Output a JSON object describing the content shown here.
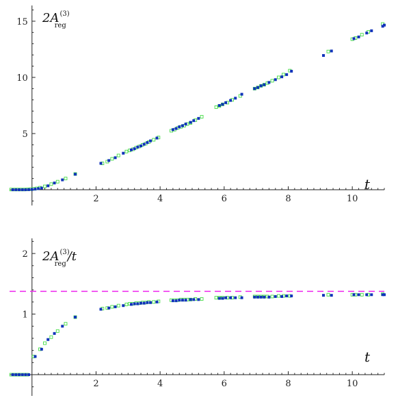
{
  "chart_data": [
    {
      "type": "scatter",
      "label": {
        "prefix": "2A",
        "superscript": "(3)",
        "subscript": "reg",
        "suffix": ""
      },
      "x_axis_label": "t",
      "xlim": [
        -0.7,
        11
      ],
      "ylim": [
        -1.4,
        16.4
      ],
      "x_ticks": [
        2,
        4,
        6,
        8,
        10
      ],
      "y_ticks": [
        5,
        10,
        15
      ],
      "series": [
        {
          "marker": "open-square",
          "color": "#44dd44",
          "x": [
            -0.65,
            -0.55,
            -0.45,
            -0.35,
            -0.25,
            -0.15,
            -0.05,
            0.05,
            0.15,
            0.25,
            0.4,
            0.6,
            0.8,
            1.05,
            1.35,
            2.2,
            2.35,
            2.5,
            2.7,
            2.95,
            3.05,
            3.15,
            3.25,
            3.35,
            3.45,
            3.55,
            3.65,
            3.8,
            3.95,
            4.35,
            4.45,
            4.55,
            4.65,
            4.75,
            4.85,
            4.95,
            5.1,
            5.3,
            5.75,
            5.85,
            5.95,
            6.1,
            6.25,
            6.5,
            6.95,
            7.05,
            7.15,
            7.25,
            7.35,
            7.5,
            7.7,
            7.85,
            8.05,
            9.25,
            10.0,
            10.1,
            10.3,
            10.5,
            10.95
          ],
          "y": [
            0.02,
            0.02,
            0.02,
            0.02,
            0.02,
            0.03,
            0.05,
            0.08,
            0.12,
            0.18,
            0.3,
            0.5,
            0.72,
            1.0,
            1.4,
            2.35,
            2.5,
            2.75,
            3.05,
            3.4,
            3.5,
            3.6,
            3.75,
            3.85,
            4.0,
            4.1,
            4.25,
            4.45,
            4.65,
            5.25,
            5.35,
            5.5,
            5.6,
            5.7,
            5.85,
            5.95,
            6.2,
            6.5,
            7.35,
            7.45,
            7.6,
            7.75,
            8.0,
            8.35,
            9.0,
            9.1,
            9.25,
            9.35,
            9.5,
            9.7,
            10.0,
            10.25,
            10.6,
            12.3,
            13.4,
            13.5,
            13.8,
            14.05,
            14.75
          ]
        },
        {
          "marker": "filled-square",
          "color": "#1133bb",
          "x": [
            -0.6,
            -0.5,
            -0.4,
            -0.3,
            -0.2,
            -0.1,
            0.0,
            0.1,
            0.2,
            0.3,
            0.5,
            0.7,
            0.95,
            1.35,
            2.15,
            2.4,
            2.6,
            2.85,
            3.1,
            3.2,
            3.3,
            3.4,
            3.5,
            3.6,
            3.7,
            3.9,
            4.4,
            4.5,
            4.6,
            4.7,
            4.8,
            4.95,
            5.05,
            5.2,
            5.85,
            5.95,
            6.05,
            6.2,
            6.35,
            6.55,
            6.95,
            7.05,
            7.15,
            7.25,
            7.4,
            7.6,
            7.8,
            7.95,
            8.1,
            9.1,
            9.35,
            10.05,
            10.2,
            10.45,
            10.6,
            10.95,
            11.0
          ],
          "y": [
            0.0,
            0.0,
            0.0,
            0.0,
            0.0,
            0.01,
            0.03,
            0.06,
            0.1,
            0.15,
            0.35,
            0.6,
            0.88,
            1.38,
            2.35,
            2.6,
            2.85,
            3.25,
            3.55,
            3.65,
            3.8,
            3.9,
            4.05,
            4.2,
            4.35,
            4.6,
            5.35,
            5.45,
            5.6,
            5.7,
            5.85,
            6.0,
            6.15,
            6.35,
            7.5,
            7.6,
            7.75,
            7.95,
            8.15,
            8.5,
            9.0,
            9.1,
            9.25,
            9.35,
            9.55,
            9.8,
            10.05,
            10.25,
            10.55,
            11.95,
            12.35,
            13.45,
            13.6,
            13.95,
            14.15,
            14.55,
            14.65
          ]
        }
      ]
    },
    {
      "type": "scatter",
      "label": {
        "prefix": "2A",
        "superscript": "(3)",
        "subscript": "reg",
        "suffix": "/t"
      },
      "x_axis_label": "t",
      "xlim": [
        -0.7,
        11
      ],
      "ylim": [
        -0.35,
        2.25
      ],
      "x_ticks": [
        2,
        4,
        6,
        8,
        10
      ],
      "y_ticks": [
        1,
        2
      ],
      "reference_line": {
        "y": 1.375,
        "style": "dashed",
        "color": "#ee22ee"
      },
      "series": [
        {
          "marker": "open-square",
          "color": "#44dd44",
          "x": [
            -0.65,
            -0.55,
            -0.45,
            -0.35,
            -0.25,
            -0.15,
            0.05,
            0.25,
            0.4,
            0.6,
            0.8,
            1.05,
            1.35,
            2.2,
            2.35,
            2.5,
            2.7,
            2.95,
            3.05,
            3.15,
            3.25,
            3.35,
            3.45,
            3.55,
            3.65,
            3.8,
            3.95,
            4.35,
            4.45,
            4.55,
            4.65,
            4.75,
            4.85,
            4.95,
            5.1,
            5.3,
            5.75,
            5.85,
            5.95,
            6.1,
            6.25,
            6.5,
            6.95,
            7.05,
            7.15,
            7.25,
            7.35,
            7.5,
            7.7,
            7.85,
            8.05,
            9.25,
            10.0,
            10.1,
            10.3,
            10.5,
            10.95
          ],
          "y": [
            0.0,
            0.0,
            0.0,
            0.0,
            0.0,
            0.0,
            0.3,
            0.42,
            0.52,
            0.62,
            0.72,
            0.84,
            0.95,
            1.09,
            1.1,
            1.12,
            1.14,
            1.16,
            1.17,
            1.17,
            1.18,
            1.18,
            1.19,
            1.19,
            1.2,
            1.2,
            1.21,
            1.23,
            1.23,
            1.23,
            1.24,
            1.24,
            1.24,
            1.24,
            1.25,
            1.25,
            1.27,
            1.27,
            1.27,
            1.27,
            1.27,
            1.28,
            1.29,
            1.29,
            1.29,
            1.29,
            1.29,
            1.29,
            1.3,
            1.3,
            1.3,
            1.32,
            1.32,
            1.32,
            1.32,
            1.32,
            1.33
          ]
        },
        {
          "marker": "filled-square",
          "color": "#1133bb",
          "x": [
            -0.6,
            -0.5,
            -0.4,
            -0.3,
            -0.2,
            -0.1,
            0.1,
            0.3,
            0.5,
            0.7,
            0.95,
            1.35,
            2.15,
            2.4,
            2.6,
            2.85,
            3.1,
            3.2,
            3.3,
            3.4,
            3.5,
            3.6,
            3.7,
            3.9,
            4.4,
            4.5,
            4.6,
            4.7,
            4.8,
            4.95,
            5.05,
            5.2,
            5.85,
            5.95,
            6.05,
            6.2,
            6.35,
            6.55,
            6.95,
            7.05,
            7.15,
            7.25,
            7.4,
            7.6,
            7.8,
            7.95,
            8.1,
            9.1,
            9.35,
            10.05,
            10.2,
            10.45,
            10.6,
            10.95,
            11.0
          ],
          "y": [
            0.0,
            0.0,
            0.0,
            0.0,
            0.0,
            0.0,
            0.3,
            0.42,
            0.58,
            0.68,
            0.8,
            0.95,
            1.08,
            1.1,
            1.12,
            1.14,
            1.16,
            1.17,
            1.17,
            1.18,
            1.18,
            1.19,
            1.19,
            1.2,
            1.22,
            1.22,
            1.23,
            1.23,
            1.23,
            1.24,
            1.24,
            1.24,
            1.26,
            1.26,
            1.27,
            1.27,
            1.27,
            1.27,
            1.28,
            1.28,
            1.28,
            1.28,
            1.28,
            1.29,
            1.29,
            1.3,
            1.3,
            1.31,
            1.31,
            1.32,
            1.32,
            1.32,
            1.32,
            1.32,
            1.32
          ]
        }
      ]
    }
  ],
  "colors": {
    "axis": "#222222",
    "reference": "#ee22ee",
    "series_open": "#44dd44",
    "series_filled": "#1133bb"
  }
}
